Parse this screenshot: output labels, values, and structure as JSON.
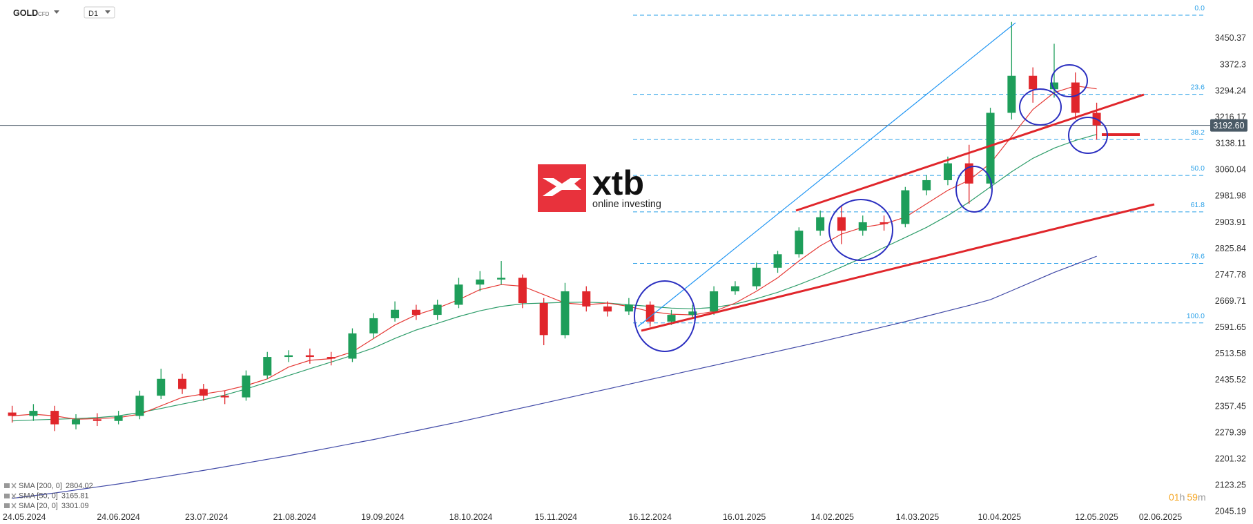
{
  "header": {
    "symbol": "GOLD",
    "instrument": "CFD",
    "timeframe": "D1"
  },
  "logo": {
    "name": "xtb",
    "tagline": "online investing"
  },
  "countdown": [
    "01",
    "h",
    "59",
    "m"
  ],
  "chart_data": {
    "type": "candlestick",
    "x": [
      "20.05.2024",
      "27.05.2024",
      "03.06.2024",
      "10.06.2024",
      "17.06.2024",
      "24.06.2024",
      "01.07.2024",
      "08.07.2024",
      "15.07.2024",
      "22.07.2024",
      "29.07.2024",
      "05.08.2024",
      "12.08.2024",
      "19.08.2024",
      "26.08.2024",
      "02.09.2024",
      "09.09.2024",
      "16.09.2024",
      "23.09.2024",
      "30.09.2024",
      "07.10.2024",
      "14.10.2024",
      "21.10.2024",
      "28.10.2024",
      "04.11.2024",
      "11.11.2024",
      "18.11.2024",
      "25.11.2024",
      "02.12.2024",
      "09.12.2024",
      "16.12.2024",
      "23.12.2024",
      "30.12.2024",
      "06.01.2025",
      "13.01.2025",
      "20.01.2025",
      "27.01.2025",
      "03.02.2025",
      "10.02.2025",
      "17.02.2025",
      "24.02.2025",
      "03.03.2025",
      "10.03.2025",
      "17.03.2025",
      "24.03.2025",
      "31.03.2025",
      "07.04.2025",
      "14.04.2025",
      "21.04.2025",
      "28.04.2025",
      "05.05.2025",
      "12.05.2025"
    ],
    "open": [
      2340,
      2330,
      2345,
      2305,
      2320,
      2315,
      2330,
      2390,
      2440,
      2410,
      2390,
      2385,
      2450,
      2505,
      2510,
      2505,
      2500,
      2575,
      2620,
      2645,
      2630,
      2660,
      2720,
      2735,
      2740,
      2665,
      2570,
      2700,
      2655,
      2640,
      2660,
      2610,
      2630,
      2640,
      2700,
      2715,
      2770,
      2810,
      2880,
      2920,
      2880,
      2905,
      2900,
      3000,
      3030,
      3080,
      3020,
      3230,
      3340,
      3300,
      3320,
      3230
    ],
    "high": [
      2360,
      2365,
      2360,
      2335,
      2338,
      2345,
      2405,
      2470,
      2455,
      2425,
      2405,
      2465,
      2520,
      2525,
      2530,
      2520,
      2590,
      2635,
      2670,
      2660,
      2675,
      2740,
      2760,
      2790,
      2750,
      2680,
      2725,
      2715,
      2670,
      2680,
      2670,
      2645,
      2660,
      2715,
      2730,
      2785,
      2820,
      2890,
      2940,
      2955,
      2925,
      2925,
      3010,
      3045,
      3100,
      3135,
      3245,
      3500,
      3365,
      3435,
      3350,
      3260
    ],
    "low": [
      2310,
      2315,
      2285,
      2290,
      2300,
      2305,
      2320,
      2380,
      2395,
      2375,
      2365,
      2375,
      2440,
      2490,
      2485,
      2480,
      2490,
      2560,
      2610,
      2615,
      2615,
      2650,
      2700,
      2720,
      2650,
      2540,
      2560,
      2640,
      2625,
      2630,
      2595,
      2600,
      2620,
      2630,
      2690,
      2705,
      2755,
      2800,
      2865,
      2840,
      2865,
      2880,
      2890,
      2985,
      3015,
      2960,
      3005,
      3210,
      3260,
      3275,
      3210,
      3150
    ],
    "close": [
      2330,
      2345,
      2305,
      2320,
      2315,
      2330,
      2390,
      2440,
      2410,
      2390,
      2385,
      2450,
      2505,
      2510,
      2505,
      2500,
      2575,
      2620,
      2645,
      2630,
      2660,
      2720,
      2735,
      2740,
      2665,
      2570,
      2700,
      2655,
      2640,
      2660,
      2610,
      2630,
      2640,
      2700,
      2715,
      2770,
      2810,
      2880,
      2920,
      2880,
      2905,
      2900,
      3000,
      3030,
      3080,
      3020,
      3230,
      3340,
      3300,
      3320,
      3230,
      3192.6
    ],
    "up_color": "#1e9e5a",
    "down_color": "#e0262b",
    "series": [
      {
        "name": "SMA [200, 0]",
        "color": "#3f48a6",
        "values": [
          2085,
          2093,
          2101,
          2110,
          2119,
          2128,
          2138,
          2148,
          2158,
          2168,
          2179,
          2190,
          2201,
          2212,
          2224,
          2236,
          2248,
          2260,
          2273,
          2286,
          2299,
          2312,
          2326,
          2340,
          2354,
          2368,
          2382,
          2396,
          2410,
          2424,
          2438,
          2452,
          2466,
          2480,
          2494,
          2508,
          2522,
          2536,
          2550,
          2565,
          2580,
          2595,
          2610,
          2626,
          2642,
          2658,
          2675,
          2702,
          2729,
          2756,
          2780,
          2804.02
        ]
      },
      {
        "name": "SMA [50, 0]",
        "color": "#2e9d6a",
        "values": [
          2315,
          2318,
          2320,
          2322,
          2325,
          2330,
          2340,
          2352,
          2365,
          2378,
          2392,
          2410,
          2430,
          2450,
          2470,
          2490,
          2510,
          2532,
          2560,
          2585,
          2605,
          2625,
          2642,
          2655,
          2663,
          2665,
          2667,
          2668,
          2665,
          2660,
          2655,
          2650,
          2648,
          2652,
          2662,
          2678,
          2697,
          2720,
          2745,
          2772,
          2800,
          2830,
          2860,
          2890,
          2925,
          2965,
          3010,
          3055,
          3095,
          3125,
          3148,
          3165.81
        ]
      },
      {
        "name": "SMA [20, 0]",
        "color": "#e53935",
        "values": [
          2330,
          2335,
          2330,
          2320,
          2322,
          2325,
          2335,
          2360,
          2385,
          2395,
          2405,
          2420,
          2440,
          2475,
          2495,
          2500,
          2520,
          2560,
          2600,
          2630,
          2650,
          2675,
          2705,
          2720,
          2715,
          2690,
          2665,
          2660,
          2665,
          2655,
          2640,
          2632,
          2630,
          2640,
          2665,
          2700,
          2740,
          2790,
          2835,
          2870,
          2890,
          2900,
          2920,
          2960,
          3000,
          3030,
          3080,
          3160,
          3240,
          3290,
          3310,
          3301.09
        ]
      }
    ],
    "fib_color": "#2aa0e8",
    "fib_levels": [
      {
        "level": "0.0",
        "price": 3520
      },
      {
        "level": "23.6",
        "price": 3285
      },
      {
        "level": "38.2",
        "price": 3151
      },
      {
        "level": "50.0",
        "price": 3044
      },
      {
        "level": "61.8",
        "price": 2936
      },
      {
        "level": "78.6",
        "price": 2783
      },
      {
        "level": "100.0",
        "price": 2606
      }
    ],
    "last_price": {
      "value": 3192.6,
      "label": "3192.60"
    },
    "xlim": [
      "16.05.2024",
      "17.06.2025"
    ],
    "xticks": [
      "24.05.2024",
      "24.06.2024",
      "23.07.2024",
      "21.08.2024",
      "19.09.2024",
      "18.10.2024",
      "15.11.2024",
      "16.12.2024",
      "16.01.2025",
      "14.02.2025",
      "14.03.2025",
      "10.04.2025",
      "12.05.2025",
      "02.06.2025"
    ],
    "ylim": [
      2050,
      3565
    ],
    "yticks": [
      3450.37,
      3372.3,
      3294.24,
      3216.17,
      3138.11,
      3060.04,
      2981.98,
      2903.91,
      2825.84,
      2747.78,
      2669.71,
      2591.65,
      2513.58,
      2435.52,
      2357.45,
      2279.39,
      2201.32,
      2123.25,
      2045.19
    ]
  }
}
